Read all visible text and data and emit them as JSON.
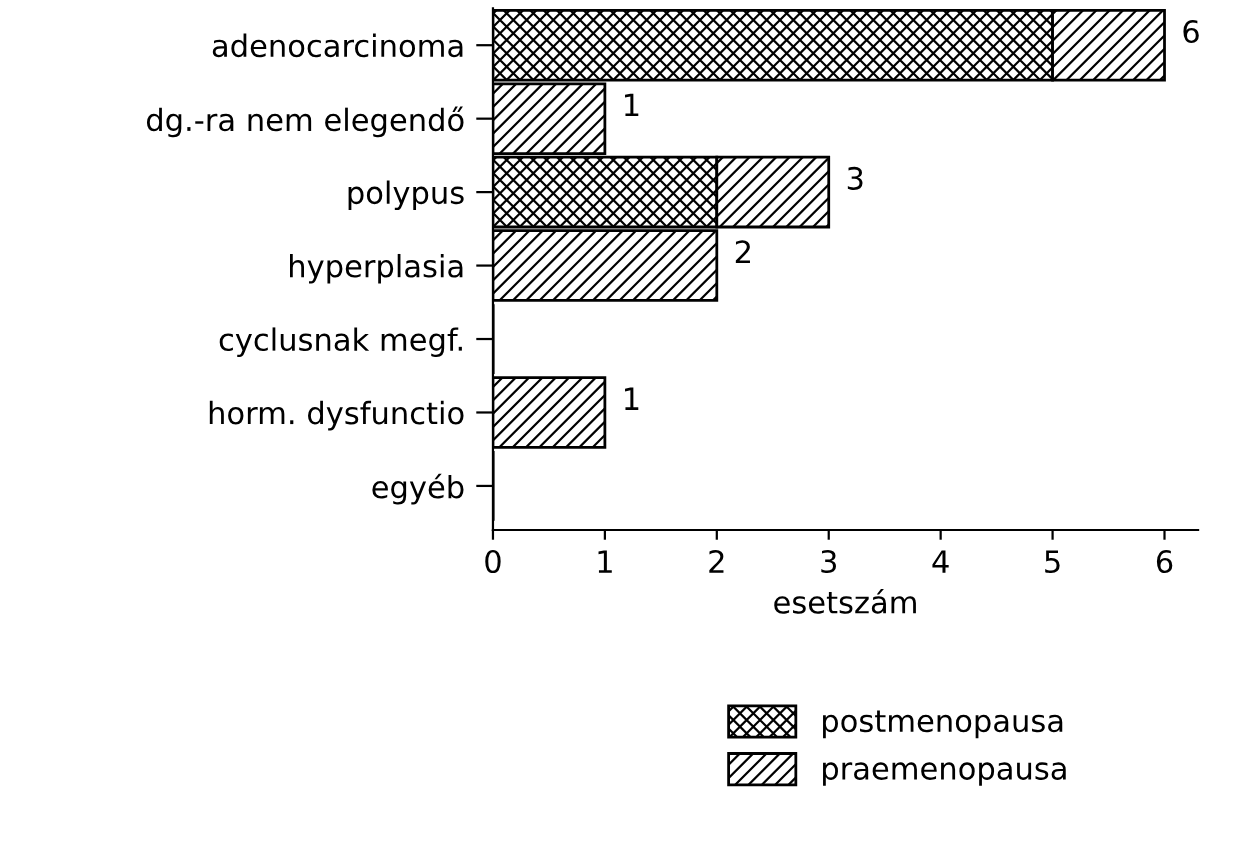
{
  "chart_data": {
    "type": "bar",
    "orientation": "horizontal",
    "stacked": true,
    "categories": [
      "adenocarcinoma",
      "dg.-ra nem elegendő",
      "polypus",
      "hyperplasia",
      "cyclusnak megf.",
      "horm. dysfunctio",
      "egyéb"
    ],
    "series": [
      {
        "name": "postmenopausa",
        "color": "#000000",
        "values": [
          5,
          0,
          2,
          0,
          0,
          0,
          0
        ]
      },
      {
        "name": "praemenopausa",
        "color": "#000000",
        "values": [
          1,
          1,
          1,
          2,
          0,
          1,
          0
        ]
      }
    ],
    "totals": [
      "6",
      "1",
      "3",
      "2",
      null,
      "1",
      null
    ],
    "xlabel": "esetszám",
    "xlim": [
      0,
      6.3
    ],
    "xticks": [
      0,
      1,
      2,
      3,
      4,
      5,
      6
    ],
    "legend": "bottom",
    "grid": false
  }
}
